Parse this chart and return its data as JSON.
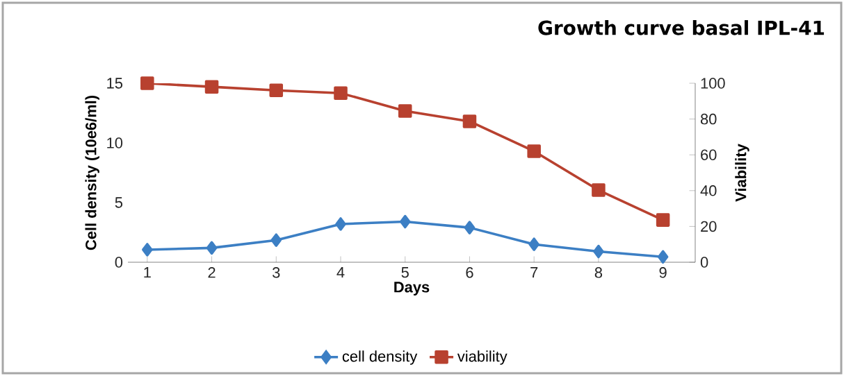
{
  "chart_data": {
    "type": "line",
    "title": "Growth curve basal IPL-41",
    "xlabel": "Days",
    "ylabel": "Cell density (10e6/ml)",
    "y2label": "Viability",
    "categories": [
      "1",
      "2",
      "3",
      "4",
      "5",
      "6",
      "7",
      "8",
      "9"
    ],
    "series": [
      {
        "name": "cell density",
        "color": "#3c7fc4",
        "marker": "diamond",
        "values": [
          1.05,
          1.2,
          1.85,
          3.2,
          3.4,
          2.9,
          1.5,
          0.9,
          0.45
        ]
      },
      {
        "name": "viability",
        "color": "#b8412f",
        "marker": "square",
        "axis": "y2",
        "values": [
          100,
          98,
          96,
          94.5,
          84.5,
          78.7,
          62,
          40.3,
          23.6
        ]
      }
    ],
    "ylim": [
      0,
      15
    ],
    "yticks": [
      0,
      5,
      10,
      15
    ],
    "y2lim": [
      0,
      100
    ],
    "y2ticks": [
      0,
      20,
      40,
      60,
      80,
      100
    ],
    "legend": "bottom",
    "grid": false
  }
}
